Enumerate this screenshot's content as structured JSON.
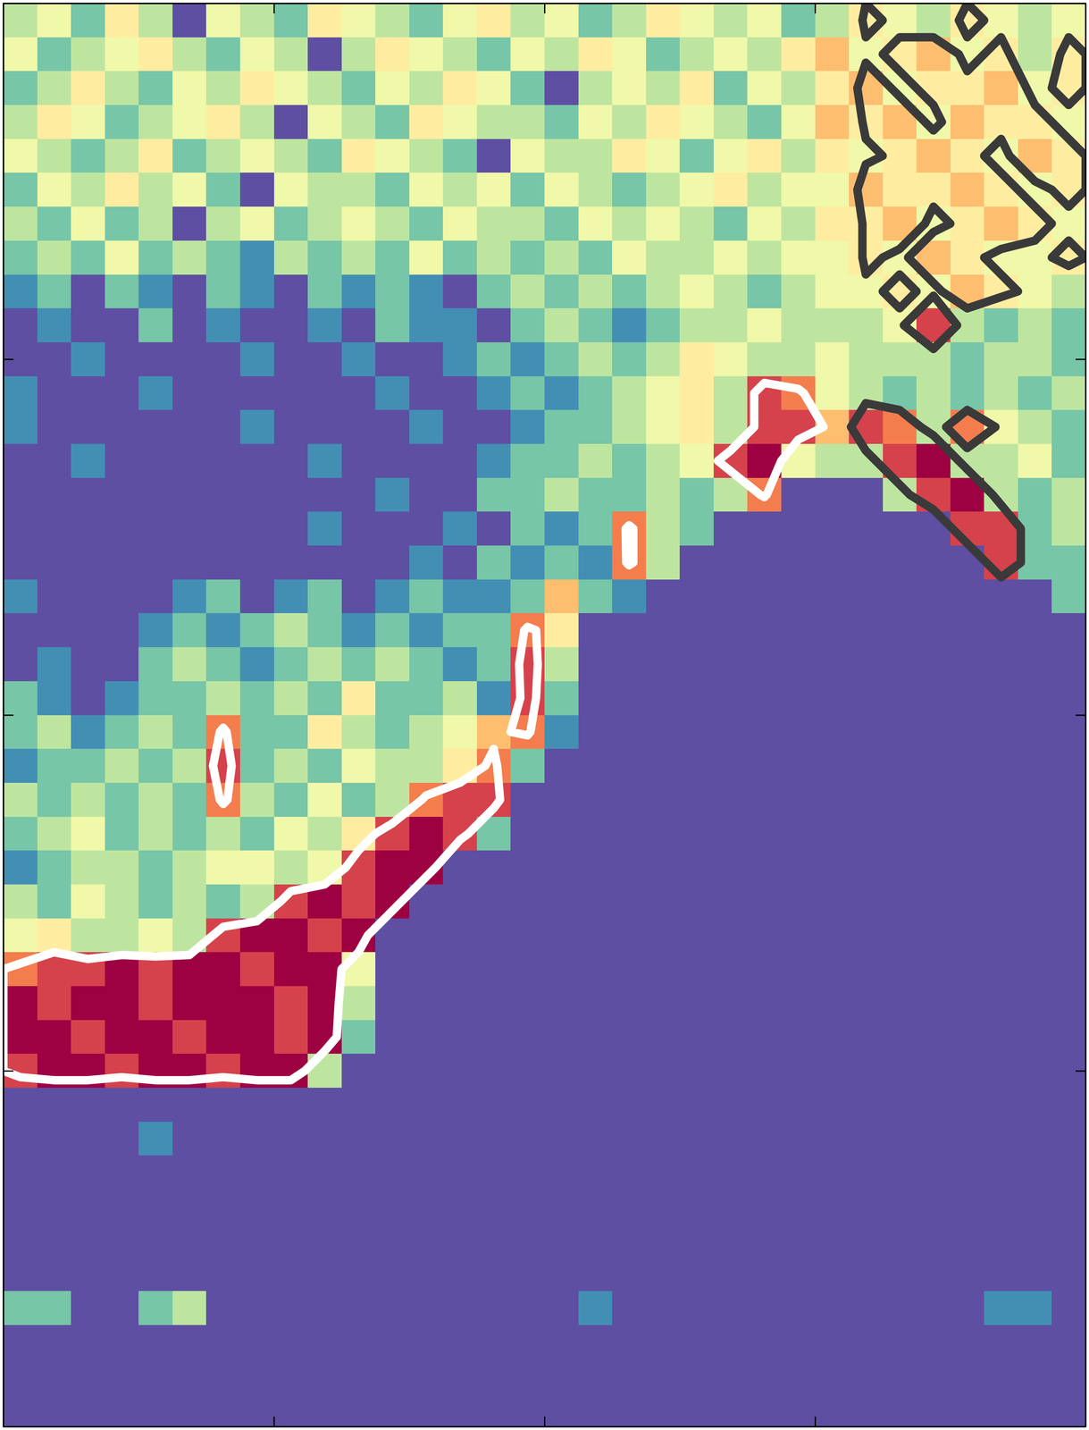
{
  "chart_data": {
    "type": "heatmap",
    "xlim": [
      0,
      4
    ],
    "ylim": [
      0,
      4
    ],
    "xticks": [
      1,
      2,
      3
    ],
    "yticks": [
      1,
      2,
      3
    ],
    "tick_labels": false,
    "zlim": [
      0,
      9
    ],
    "contours": [
      {
        "color": "#ffffff",
        "level": 6.5,
        "x_range": [
          0,
          3.1
        ]
      },
      {
        "color": "#3a3a3a",
        "level": 4.5,
        "x_range": [
          3.1,
          4
        ]
      }
    ],
    "values": [
      [
        3,
        4,
        2,
        5,
        3,
        0,
        4,
        3,
        2,
        5,
        4,
        3,
        2,
        4,
        5,
        3,
        4,
        2,
        3,
        5,
        4,
        3,
        4,
        2,
        3,
        5,
        4,
        3,
        5,
        4,
        3,
        4
      ],
      [
        4,
        2,
        3,
        4,
        5,
        3,
        2,
        4,
        3,
        0,
        3,
        5,
        4,
        3,
        2,
        4,
        3,
        5,
        4,
        2,
        3,
        4,
        3,
        5,
        6,
        4,
        5,
        6,
        4,
        5,
        3,
        5
      ],
      [
        2,
        3,
        5,
        3,
        2,
        4,
        3,
        5,
        4,
        3,
        2,
        4,
        3,
        5,
        4,
        2,
        0,
        3,
        4,
        3,
        5,
        2,
        4,
        3,
        5,
        6,
        4,
        5,
        5,
        6,
        4,
        5
      ],
      [
        3,
        5,
        4,
        2,
        3,
        4,
        5,
        3,
        0,
        4,
        3,
        2,
        5,
        4,
        3,
        3,
        2,
        4,
        3,
        5,
        4,
        3,
        2,
        4,
        6,
        5,
        6,
        4,
        6,
        5,
        5,
        4
      ],
      [
        4,
        3,
        2,
        3,
        5,
        2,
        3,
        4,
        3,
        2,
        5,
        4,
        3,
        2,
        0,
        4,
        3,
        3,
        5,
        4,
        2,
        4,
        5,
        3,
        5,
        4,
        5,
        6,
        5,
        4,
        6,
        5
      ],
      [
        2,
        4,
        3,
        5,
        3,
        4,
        2,
        0,
        4,
        3,
        3,
        2,
        4,
        3,
        4,
        2,
        4,
        3,
        2,
        3,
        4,
        5,
        3,
        4,
        4,
        6,
        5,
        5,
        6,
        5,
        4,
        5
      ],
      [
        3,
        2,
        4,
        2,
        3,
        0,
        3,
        4,
        2,
        3,
        4,
        3,
        2,
        4,
        3,
        3,
        2,
        4,
        3,
        4,
        3,
        2,
        4,
        3,
        5,
        5,
        6,
        4,
        5,
        6,
        5,
        4
      ],
      [
        2,
        3,
        2,
        4,
        2,
        3,
        2,
        1,
        3,
        2,
        3,
        2,
        4,
        2,
        3,
        2,
        3,
        2,
        4,
        3,
        3,
        4,
        3,
        4,
        4,
        5,
        4,
        6,
        5,
        4,
        4,
        5
      ],
      [
        1,
        2,
        0,
        2,
        1,
        0,
        2,
        1,
        0,
        2,
        1,
        2,
        1,
        0,
        2,
        3,
        2,
        3,
        2,
        3,
        4,
        3,
        2,
        3,
        4,
        4,
        5,
        4,
        6,
        5,
        4,
        3
      ],
      [
        0,
        1,
        0,
        0,
        2,
        0,
        1,
        0,
        0,
        1,
        0,
        2,
        1,
        1,
        0,
        2,
        3,
        2,
        1,
        2,
        3,
        3,
        4,
        3,
        3,
        3,
        4,
        8,
        3,
        2,
        3,
        2
      ],
      [
        0,
        0,
        1,
        0,
        0,
        0,
        0,
        1,
        0,
        0,
        1,
        0,
        0,
        1,
        2,
        1,
        2,
        3,
        2,
        3,
        5,
        4,
        3,
        3,
        4,
        3,
        3,
        3,
        2,
        3,
        3,
        2
      ],
      [
        1,
        0,
        0,
        0,
        1,
        0,
        0,
        0,
        0,
        0,
        0,
        1,
        0,
        0,
        1,
        2,
        1,
        2,
        3,
        4,
        5,
        3,
        8,
        7,
        4,
        3,
        2,
        3,
        2,
        3,
        2,
        3
      ],
      [
        1,
        0,
        0,
        0,
        0,
        0,
        0,
        1,
        0,
        0,
        0,
        0,
        1,
        0,
        0,
        1,
        2,
        2,
        3,
        4,
        5,
        3,
        8,
        8,
        6,
        8,
        7,
        3,
        7,
        4,
        3,
        2
      ],
      [
        0,
        0,
        1,
        0,
        0,
        0,
        0,
        0,
        0,
        1,
        0,
        0,
        0,
        0,
        1,
        2,
        2,
        3,
        2,
        3,
        4,
        8,
        9,
        4,
        3,
        3,
        8,
        9,
        3,
        3,
        4,
        2
      ],
      [
        0,
        0,
        0,
        0,
        0,
        0,
        0,
        0,
        0,
        0,
        0,
        1,
        0,
        0,
        2,
        2,
        3,
        2,
        2,
        3,
        2,
        3,
        7,
        0,
        0,
        0,
        3,
        8,
        9,
        3,
        2,
        3
      ],
      [
        0,
        0,
        0,
        0,
        0,
        0,
        0,
        0,
        0,
        1,
        0,
        0,
        0,
        1,
        0,
        2,
        1,
        2,
        7,
        3,
        2,
        0,
        0,
        0,
        0,
        0,
        0,
        0,
        8,
        8,
        2,
        3
      ],
      [
        0,
        0,
        0,
        0,
        0,
        0,
        0,
        0,
        0,
        0,
        0,
        0,
        1,
        0,
        2,
        1,
        2,
        1,
        7,
        3,
        0,
        0,
        0,
        0,
        0,
        0,
        0,
        0,
        0,
        8,
        2,
        2
      ],
      [
        1,
        0,
        0,
        0,
        0,
        1,
        2,
        0,
        1,
        2,
        0,
        1,
        2,
        1,
        1,
        2,
        6,
        2,
        1,
        0,
        0,
        0,
        0,
        0,
        0,
        0,
        0,
        0,
        0,
        0,
        0,
        2
      ],
      [
        0,
        0,
        0,
        0,
        1,
        2,
        1,
        2,
        3,
        2,
        1,
        2,
        1,
        2,
        2,
        7,
        5,
        0,
        0,
        0,
        0,
        0,
        0,
        0,
        0,
        0,
        0,
        0,
        0,
        0,
        0,
        0
      ],
      [
        0,
        1,
        0,
        0,
        2,
        3,
        2,
        1,
        2,
        3,
        2,
        3,
        2,
        1,
        2,
        8,
        3,
        0,
        0,
        0,
        0,
        0,
        0,
        0,
        0,
        0,
        0,
        0,
        0,
        0,
        0,
        0
      ],
      [
        2,
        1,
        0,
        1,
        2,
        2,
        3,
        2,
        3,
        2,
        5,
        2,
        2,
        3,
        1,
        8,
        2,
        0,
        0,
        0,
        0,
        0,
        0,
        0,
        0,
        0,
        0,
        0,
        0,
        0,
        0,
        0
      ],
      [
        2,
        3,
        1,
        2,
        3,
        2,
        7,
        2,
        2,
        5,
        3,
        2,
        3,
        4,
        6,
        7,
        1,
        0,
        0,
        0,
        0,
        0,
        0,
        0,
        0,
        0,
        0,
        0,
        0,
        0,
        0,
        0
      ],
      [
        1,
        2,
        2,
        3,
        2,
        3,
        8,
        2,
        3,
        2,
        4,
        3,
        3,
        5,
        7,
        2,
        0,
        0,
        0,
        0,
        0,
        0,
        0,
        0,
        0,
        0,
        0,
        0,
        0,
        0,
        0,
        0
      ],
      [
        3,
        2,
        3,
        2,
        3,
        2,
        7,
        3,
        2,
        4,
        2,
        3,
        7,
        8,
        8,
        0,
        0,
        0,
        0,
        0,
        0,
        0,
        0,
        0,
        0,
        0,
        0,
        0,
        0,
        0,
        0,
        0
      ],
      [
        2,
        3,
        4,
        2,
        3,
        2,
        3,
        2,
        4,
        3,
        5,
        8,
        9,
        8,
        2,
        0,
        0,
        0,
        0,
        0,
        0,
        0,
        0,
        0,
        0,
        0,
        0,
        0,
        0,
        0,
        0,
        0
      ],
      [
        1,
        2,
        3,
        3,
        2,
        3,
        4,
        4,
        3,
        4,
        8,
        9,
        9,
        0,
        0,
        0,
        0,
        0,
        0,
        0,
        0,
        0,
        0,
        0,
        0,
        0,
        0,
        0,
        0,
        0,
        0,
        0
      ],
      [
        3,
        2,
        4,
        3,
        2,
        3,
        2,
        3,
        8,
        9,
        8,
        9,
        0,
        0,
        0,
        0,
        0,
        0,
        0,
        0,
        0,
        0,
        0,
        0,
        0,
        0,
        0,
        0,
        0,
        0,
        0,
        0
      ],
      [
        4,
        5,
        3,
        3,
        4,
        3,
        8,
        9,
        9,
        8,
        9,
        0,
        0,
        0,
        0,
        0,
        0,
        0,
        0,
        0,
        0,
        0,
        0,
        0,
        0,
        0,
        0,
        0,
        0,
        0,
        0,
        0
      ],
      [
        7,
        8,
        8,
        9,
        8,
        9,
        9,
        8,
        9,
        9,
        4,
        0,
        0,
        0,
        0,
        0,
        0,
        0,
        0,
        0,
        0,
        0,
        0,
        0,
        0,
        0,
        0,
        0,
        0,
        0,
        0,
        0
      ],
      [
        9,
        8,
        9,
        9,
        8,
        9,
        9,
        9,
        8,
        9,
        3,
        0,
        0,
        0,
        0,
        0,
        0,
        0,
        0,
        0,
        0,
        0,
        0,
        0,
        0,
        0,
        0,
        0,
        0,
        0,
        0,
        0
      ],
      [
        9,
        9,
        8,
        9,
        9,
        8,
        9,
        9,
        8,
        9,
        2,
        0,
        0,
        0,
        0,
        0,
        0,
        0,
        0,
        0,
        0,
        0,
        0,
        0,
        0,
        0,
        0,
        0,
        0,
        0,
        0,
        0
      ],
      [
        8,
        9,
        9,
        8,
        9,
        9,
        8,
        9,
        9,
        3,
        0,
        0,
        0,
        0,
        0,
        0,
        0,
        0,
        0,
        0,
        0,
        0,
        0,
        0,
        0,
        0,
        0,
        0,
        0,
        0,
        0,
        0
      ],
      [
        0,
        0,
        0,
        0,
        0,
        0,
        0,
        0,
        0,
        0,
        0,
        0,
        0,
        0,
        0,
        0,
        0,
        0,
        0,
        0,
        0,
        0,
        0,
        0,
        0,
        0,
        0,
        0,
        0,
        0,
        0,
        0
      ],
      [
        0,
        0,
        0,
        0,
        1,
        0,
        0,
        0,
        0,
        0,
        0,
        0,
        0,
        0,
        0,
        0,
        0,
        0,
        0,
        0,
        0,
        0,
        0,
        0,
        0,
        0,
        0,
        0,
        0,
        0,
        0,
        0
      ],
      [
        0,
        0,
        0,
        0,
        0,
        0,
        0,
        0,
        0,
        0,
        0,
        0,
        0,
        0,
        0,
        0,
        0,
        0,
        0,
        0,
        0,
        0,
        0,
        0,
        0,
        0,
        0,
        0,
        0,
        0,
        0,
        0
      ],
      [
        0,
        0,
        0,
        0,
        0,
        0,
        0,
        0,
        0,
        0,
        0,
        0,
        0,
        0,
        0,
        0,
        0,
        0,
        0,
        0,
        0,
        0,
        0,
        0,
        0,
        0,
        0,
        0,
        0,
        0,
        0,
        0
      ],
      [
        0,
        0,
        0,
        0,
        0,
        0,
        0,
        0,
        0,
        0,
        0,
        0,
        0,
        0,
        0,
        0,
        0,
        0,
        0,
        0,
        0,
        0,
        0,
        0,
        0,
        0,
        0,
        0,
        0,
        0,
        0,
        0
      ],
      [
        0,
        0,
        0,
        0,
        0,
        0,
        0,
        0,
        0,
        0,
        0,
        0,
        0,
        0,
        0,
        0,
        0,
        0,
        0,
        0,
        0,
        0,
        0,
        0,
        0,
        0,
        0,
        0,
        0,
        0,
        0,
        0
      ],
      [
        2,
        2,
        0,
        0,
        2,
        3,
        0,
        0,
        0,
        0,
        0,
        0,
        0,
        0,
        0,
        0,
        0,
        1,
        0,
        0,
        0,
        0,
        0,
        0,
        0,
        0,
        0,
        0,
        0,
        1,
        1,
        0
      ],
      [
        0,
        0,
        0,
        0,
        0,
        0,
        0,
        0,
        0,
        0,
        0,
        0,
        0,
        0,
        0,
        0,
        0,
        0,
        0,
        0,
        0,
        0,
        0,
        0,
        0,
        0,
        0,
        0,
        0,
        0,
        0,
        0
      ],
      [
        0,
        0,
        0,
        0,
        0,
        0,
        0,
        0,
        0,
        0,
        0,
        0,
        0,
        0,
        0,
        0,
        0,
        0,
        0,
        0,
        0,
        0,
        0,
        0,
        0,
        0,
        0,
        0,
        0,
        0,
        0,
        0
      ],
      [
        0,
        0,
        0,
        0,
        0,
        0,
        0,
        0,
        0,
        0,
        0,
        0,
        0,
        0,
        0,
        0,
        0,
        0,
        0,
        0,
        0,
        0,
        0,
        0,
        0,
        0,
        0,
        0,
        0,
        0,
        0,
        0
      ]
    ]
  }
}
